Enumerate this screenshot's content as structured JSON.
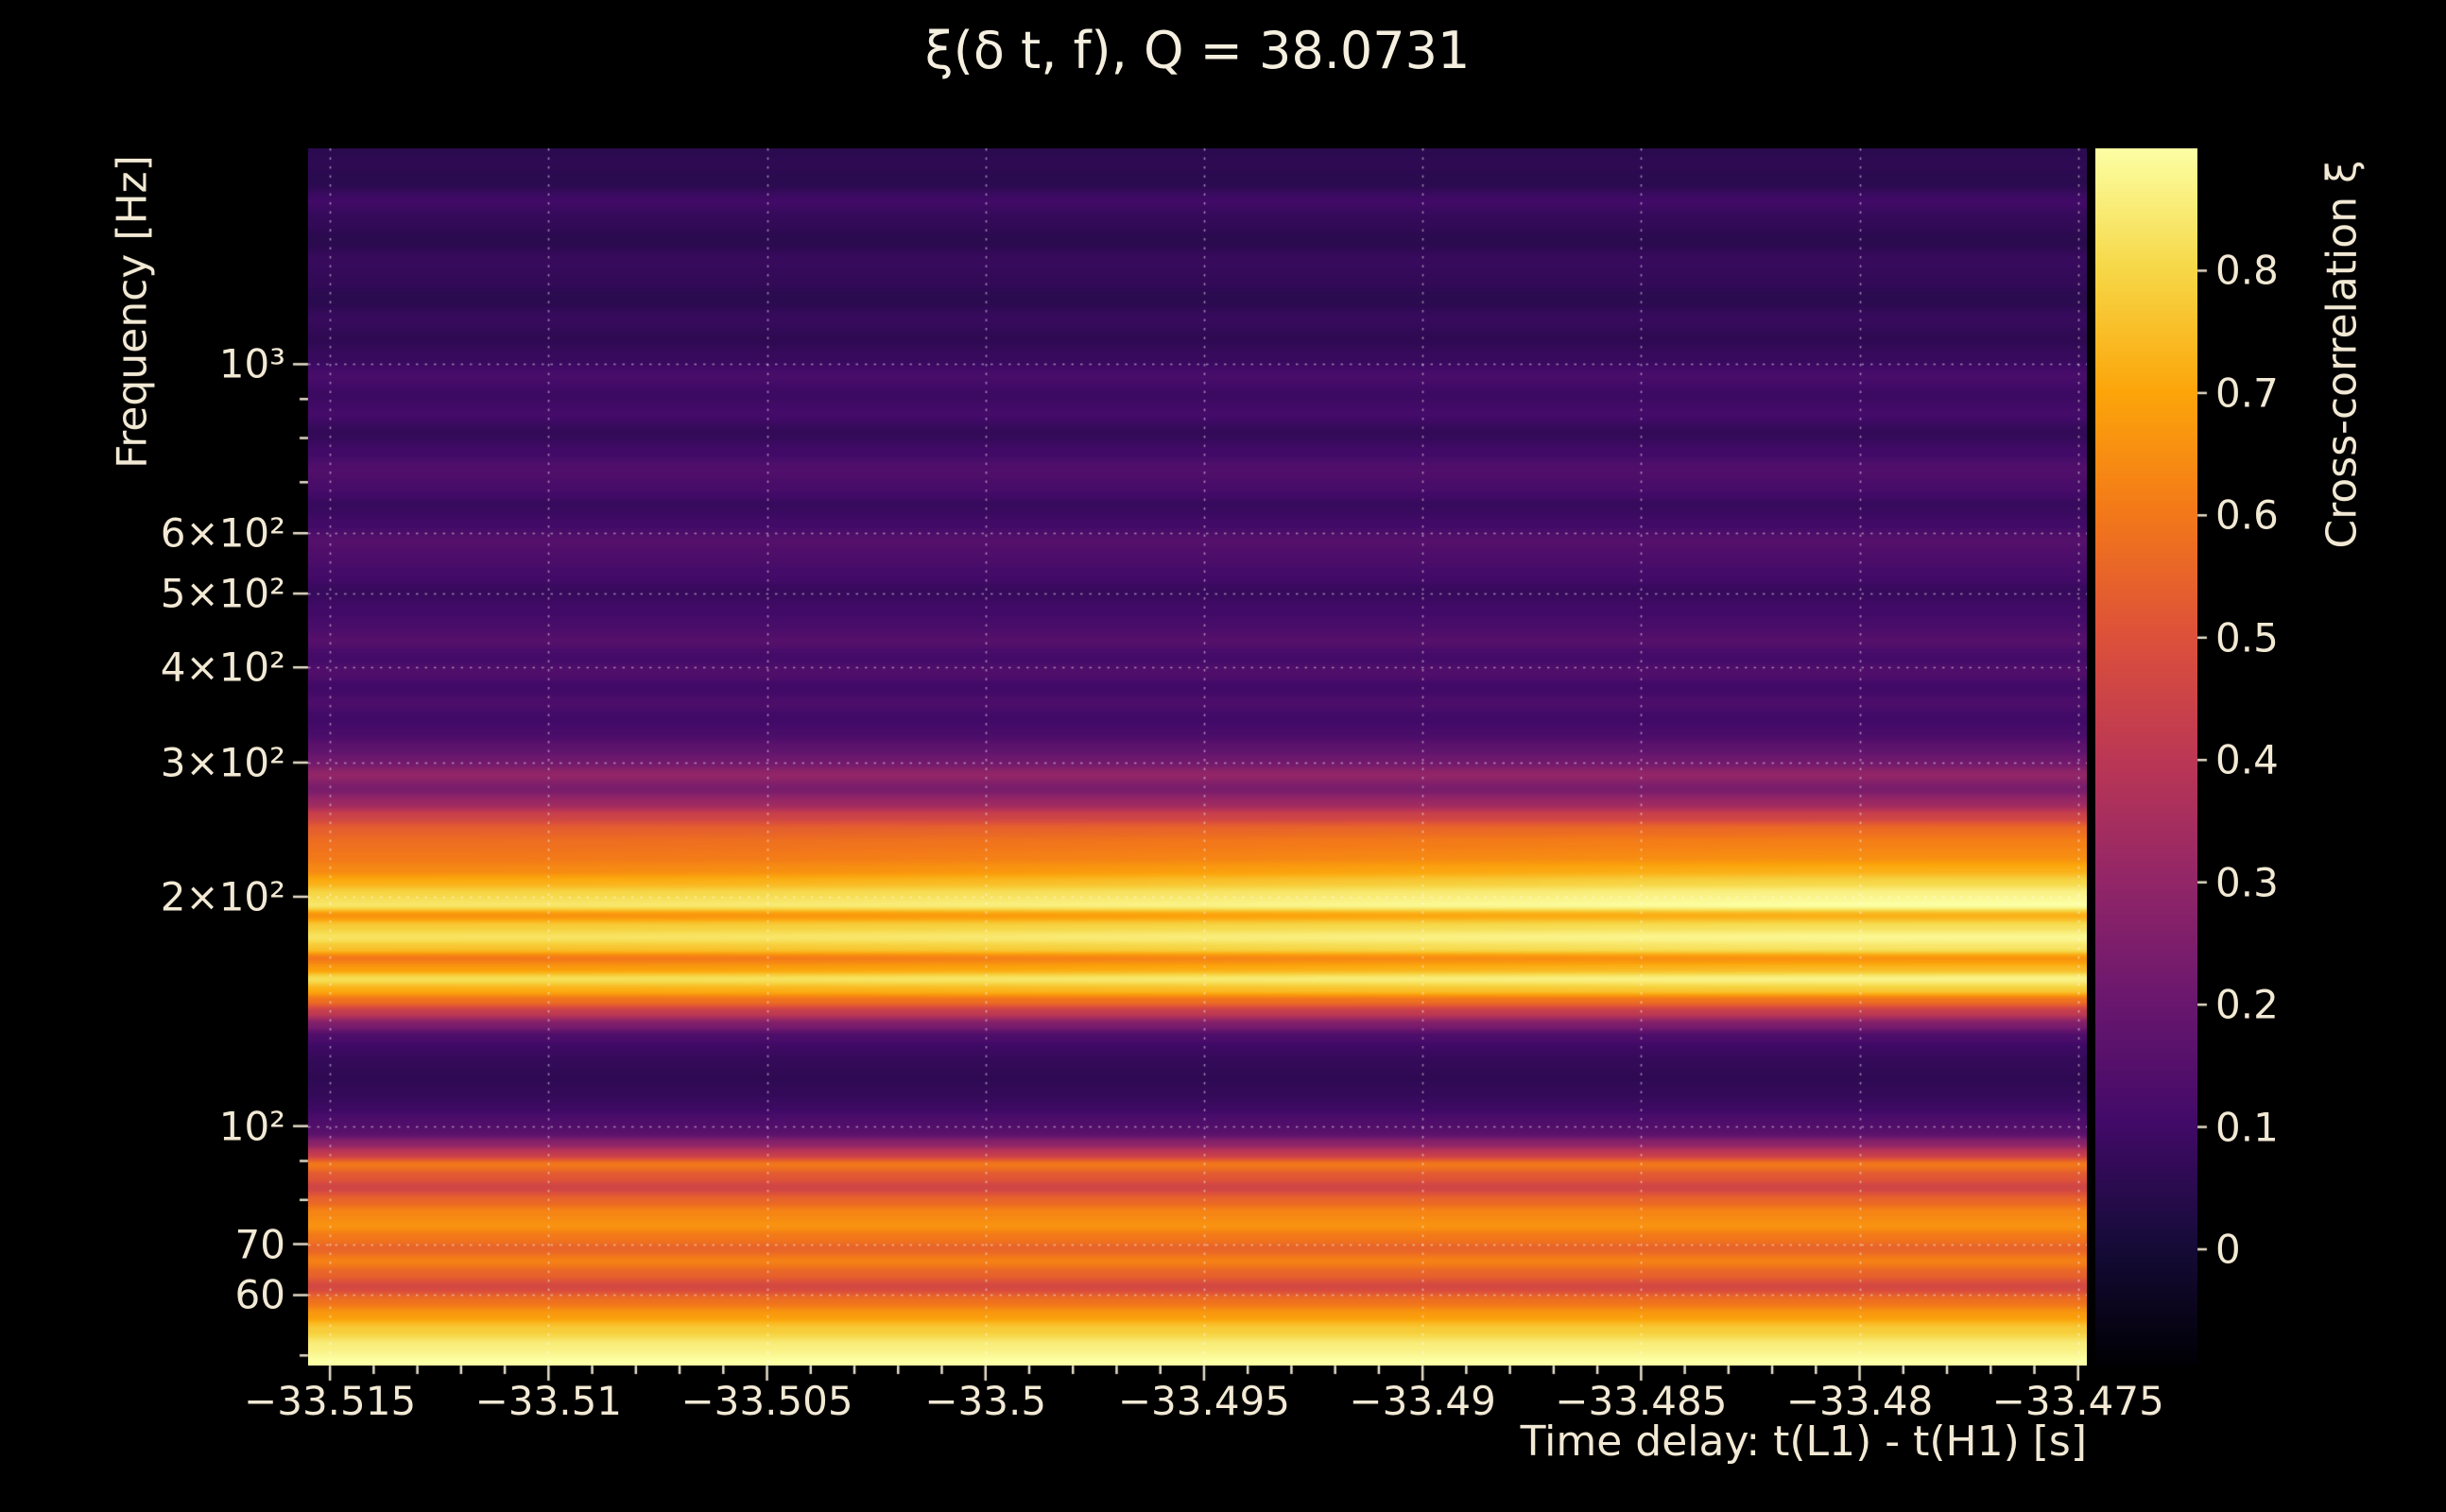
{
  "figure": {
    "background": "#000000",
    "text_color": "#f2e9d4"
  },
  "chart_data": {
    "type": "heatmap",
    "title": "ξ(δ t, f), Q = 38.0731",
    "xlabel": "Time delay: t(L1) - t(H1) [s]",
    "ylabel": "Frequency [Hz]",
    "colorbar_label": "Cross-correlation ξ",
    "x_range": [
      -33.5155,
      -33.4748
    ],
    "x_ticks": [
      {
        "v": -33.515,
        "label": "−33.515"
      },
      {
        "v": -33.51,
        "label": "−33.51"
      },
      {
        "v": -33.505,
        "label": "−33.505"
      },
      {
        "v": -33.5,
        "label": "−33.5"
      },
      {
        "v": -33.495,
        "label": "−33.495"
      },
      {
        "v": -33.49,
        "label": "−33.49"
      },
      {
        "v": -33.485,
        "label": "−33.485"
      },
      {
        "v": -33.48,
        "label": "−33.48"
      },
      {
        "v": -33.475,
        "label": "−33.475"
      }
    ],
    "y_scale": "log",
    "y_range": [
      48.5,
      1920
    ],
    "y_ticks": [
      {
        "v": 1000,
        "label": "10³"
      },
      {
        "v": 600,
        "label": "6×10²"
      },
      {
        "v": 500,
        "label": "5×10²"
      },
      {
        "v": 400,
        "label": "4×10²"
      },
      {
        "v": 300,
        "label": "3×10²"
      },
      {
        "v": 200,
        "label": "2×10²"
      },
      {
        "v": 100,
        "label": "10²"
      },
      {
        "v": 70,
        "label": "70"
      },
      {
        "v": 60,
        "label": "60"
      }
    ],
    "color_range": [
      -0.095,
      0.9
    ],
    "colorbar_ticks": [
      {
        "v": 0,
        "label": "0"
      },
      {
        "v": 0.1,
        "label": "0.1"
      },
      {
        "v": 0.2,
        "label": "0.2"
      },
      {
        "v": 0.3,
        "label": "0.3"
      },
      {
        "v": 0.4,
        "label": "0.4"
      },
      {
        "v": 0.5,
        "label": "0.5"
      },
      {
        "v": 0.6,
        "label": "0.6"
      },
      {
        "v": 0.7,
        "label": "0.7"
      },
      {
        "v": 0.8,
        "label": "0.8"
      }
    ],
    "colormap": {
      "name": "inferno",
      "stops": [
        [
          0.0,
          "#000004"
        ],
        [
          0.1,
          "#160b39"
        ],
        [
          0.2,
          "#420a68"
        ],
        [
          0.3,
          "#6a176e"
        ],
        [
          0.4,
          "#932667"
        ],
        [
          0.5,
          "#bc3754"
        ],
        [
          0.6,
          "#dd513a"
        ],
        [
          0.7,
          "#f37819"
        ],
        [
          0.8,
          "#fca50a"
        ],
        [
          0.9,
          "#f6d746"
        ],
        [
          1.0,
          "#fcffa4"
        ]
      ]
    },
    "bands_note": "Each band is [frequency_Hz, xi_left, xi_right?]; xi is cross-correlation, nearly constant in time delay",
    "bands": [
      [
        49,
        0.9
      ],
      [
        51.5,
        0.86
      ],
      [
        54,
        0.78
      ],
      [
        56.5,
        0.68
      ],
      [
        59,
        0.58
      ],
      [
        61.5,
        0.47
      ],
      [
        64,
        0.55
      ],
      [
        66.5,
        0.62
      ],
      [
        69,
        0.55
      ],
      [
        71.5,
        0.6
      ],
      [
        74,
        0.66
      ],
      [
        77,
        0.63
      ],
      [
        80,
        0.55
      ],
      [
        83,
        0.46
      ],
      [
        86,
        0.52
      ],
      [
        89,
        0.6
      ],
      [
        92,
        0.42
      ],
      [
        95,
        0.28
      ],
      [
        98,
        0.16
      ],
      [
        102,
        0.13
      ],
      [
        106,
        0.09
      ],
      [
        111,
        0.07
      ],
      [
        116,
        0.06
      ],
      [
        121,
        0.07
      ],
      [
        126,
        0.09
      ],
      [
        131,
        0.13
      ],
      [
        136,
        0.25
      ],
      [
        141,
        0.42
      ],
      [
        146,
        0.58
      ],
      [
        151,
        0.72,
        0.78
      ],
      [
        156,
        0.82,
        0.87
      ],
      [
        161,
        0.68,
        0.74
      ],
      [
        166,
        0.6,
        0.66
      ],
      [
        171,
        0.76,
        0.83
      ],
      [
        177,
        0.83,
        0.88
      ],
      [
        183,
        0.78,
        0.82
      ],
      [
        189,
        0.66,
        0.72
      ],
      [
        195,
        0.84,
        0.9
      ],
      [
        202,
        0.8,
        0.87
      ],
      [
        209,
        0.72,
        0.8
      ],
      [
        217,
        0.64,
        0.72
      ],
      [
        226,
        0.6,
        0.65
      ],
      [
        235,
        0.58,
        0.62
      ],
      [
        245,
        0.54,
        0.57
      ],
      [
        255,
        0.45
      ],
      [
        266,
        0.32
      ],
      [
        277,
        0.24
      ],
      [
        289,
        0.3
      ],
      [
        301,
        0.22
      ],
      [
        314,
        0.17
      ],
      [
        328,
        0.12
      ],
      [
        343,
        0.1
      ],
      [
        359,
        0.13
      ],
      [
        376,
        0.1
      ],
      [
        394,
        0.14
      ],
      [
        413,
        0.11
      ],
      [
        433,
        0.15
      ],
      [
        455,
        0.12
      ],
      [
        478,
        0.1
      ],
      [
        503,
        0.08
      ],
      [
        529,
        0.11
      ],
      [
        557,
        0.13
      ],
      [
        587,
        0.15
      ],
      [
        619,
        0.1
      ],
      [
        653,
        0.08
      ],
      [
        689,
        0.12
      ],
      [
        728,
        0.14
      ],
      [
        769,
        0.1
      ],
      [
        813,
        0.07
      ],
      [
        860,
        0.11
      ],
      [
        910,
        0.09
      ],
      [
        963,
        0.12
      ],
      [
        1020,
        0.08
      ],
      [
        1081,
        0.06
      ],
      [
        1146,
        0.08
      ],
      [
        1215,
        0.05
      ],
      [
        1289,
        0.07
      ],
      [
        1368,
        0.08
      ],
      [
        1452,
        0.05
      ],
      [
        1541,
        0.07
      ],
      [
        1636,
        0.1
      ],
      [
        1737,
        0.05
      ],
      [
        1844,
        0.06
      ],
      [
        1920,
        0.05
      ]
    ]
  }
}
